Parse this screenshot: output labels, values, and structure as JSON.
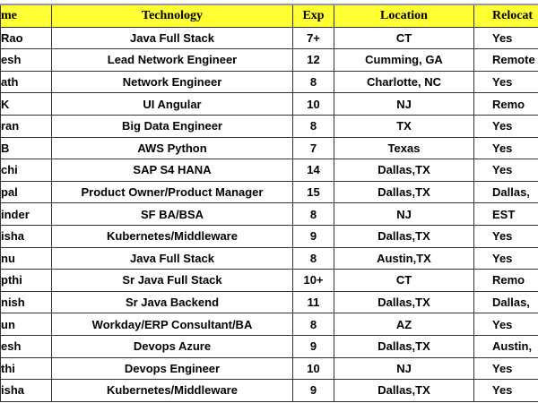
{
  "headers": {
    "name": "me",
    "technology": "Technology",
    "exp": "Exp",
    "location": "Location",
    "relocation": "Relocat"
  },
  "header_color": "#ffff33",
  "rows": [
    {
      "name": "Rao",
      "technology": "Java Full Stack",
      "exp": "7+",
      "location": "CT",
      "relocation": "Yes"
    },
    {
      "name": "esh",
      "technology": "Lead Network Engineer",
      "exp": "12",
      "location": "Cumming, GA",
      "relocation": "Remote"
    },
    {
      "name": "ath",
      "technology": "Network Engineer",
      "exp": "8",
      "location": "Charlotte, NC",
      "relocation": "Yes"
    },
    {
      "name": "K",
      "technology": "UI Angular",
      "exp": "10",
      "location": "NJ",
      "relocation": "Remo"
    },
    {
      "name": "ran",
      "technology": "Big Data Engineer",
      "exp": "8",
      "location": "TX",
      "relocation": "Yes"
    },
    {
      "name": "B",
      "technology": "AWS Python",
      "exp": "7",
      "location": "Texas",
      "relocation": "Yes"
    },
    {
      "name": "chi",
      "technology": "SAP S4 HANA",
      "exp": "14",
      "location": "Dallas,TX",
      "relocation": "Yes"
    },
    {
      "name": "pal",
      "technology": "Product Owner/Product Manager",
      "exp": "15",
      "location": "Dallas,TX",
      "relocation": "Dallas,"
    },
    {
      "name": "inder",
      "technology": "SF BA/BSA",
      "exp": "8",
      "location": "NJ",
      "relocation": "EST"
    },
    {
      "name": "isha",
      "technology": "Kubernetes/Middleware",
      "exp": "9",
      "location": "Dallas,TX",
      "relocation": "Yes"
    },
    {
      "name": "nu",
      "technology": "Java Full Stack",
      "exp": "8",
      "location": "Austin,TX",
      "relocation": "Yes"
    },
    {
      "name": "pthi",
      "technology": "Sr Java Full Stack",
      "exp": "10+",
      "location": "CT",
      "relocation": "Remo"
    },
    {
      "name": "nish",
      "technology": "Sr Java Backend",
      "exp": "11",
      "location": "Dallas,TX",
      "relocation": "Dallas,"
    },
    {
      "name": "un",
      "technology": "Workday/ERP Consultant/BA",
      "exp": "8",
      "location": "AZ",
      "relocation": "Yes"
    },
    {
      "name": "esh",
      "technology": "Devops Azure",
      "exp": "9",
      "location": "Dallas,TX",
      "relocation": "Austin,"
    },
    {
      "name": "thi",
      "technology": "Devops Engineer",
      "exp": "10",
      "location": "NJ",
      "relocation": "Yes"
    },
    {
      "name": "isha",
      "technology": "Kubernetes/Middleware",
      "exp": "9",
      "location": "Dallas,TX",
      "relocation": "Yes"
    }
  ]
}
